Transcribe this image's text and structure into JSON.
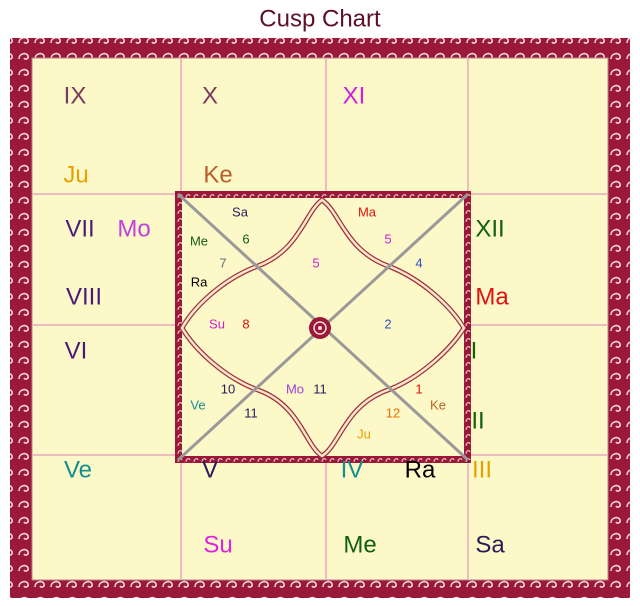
{
  "title": "Cusp Chart",
  "outer_labels": [
    {
      "text": "IX",
      "color": "#7a3a5e"
    },
    {
      "text": "X",
      "color": "#7a3a5e"
    },
    {
      "text": "XI",
      "color": "#d21ee0"
    },
    {
      "text": "Ju",
      "color": "#e8a000"
    },
    {
      "text": "Ke",
      "color": "#b8602a"
    },
    {
      "text": "VII",
      "color": "#4a1a7a"
    },
    {
      "text": "Mo",
      "color": "#c040e0"
    },
    {
      "text": "XII",
      "color": "#106010"
    },
    {
      "text": "VIII",
      "color": "#4a1a7a"
    },
    {
      "text": "Ma",
      "color": "#e01010"
    },
    {
      "text": "VI",
      "color": "#4a1a7a"
    },
    {
      "text": "I",
      "color": "#106010"
    },
    {
      "text": "II",
      "color": "#106010"
    },
    {
      "text": "Ve",
      "color": "#109090"
    },
    {
      "text": "V",
      "color": "#2a1a5a"
    },
    {
      "text": "IV",
      "color": "#109090"
    },
    {
      "text": "Ra",
      "color": "#000000"
    },
    {
      "text": "III",
      "color": "#e8a000"
    },
    {
      "text": "Su",
      "color": "#e020e0"
    },
    {
      "text": "Me",
      "color": "#106010"
    },
    {
      "text": "Sa",
      "color": "#2a1a5a"
    }
  ],
  "inner_labels": [
    {
      "text": "Sa",
      "color": "#2a1a5a"
    },
    {
      "text": "Ma",
      "color": "#e01010"
    },
    {
      "text": "Me",
      "color": "#106010"
    },
    {
      "text": "6",
      "color": "#106010"
    },
    {
      "text": "5",
      "color": "#d020d0"
    },
    {
      "text": "7",
      "color": "#607070"
    },
    {
      "text": "5",
      "color": "#d020d0"
    },
    {
      "text": "4",
      "color": "#3050c0"
    },
    {
      "text": "Ra",
      "color": "#000000"
    },
    {
      "text": "Su",
      "color": "#d020d0"
    },
    {
      "text": "8",
      "color": "#e01010"
    },
    {
      "text": "2",
      "color": "#3050c0"
    },
    {
      "text": "10",
      "color": "#2a1a5a"
    },
    {
      "text": "Mo",
      "color": "#a040d0"
    },
    {
      "text": "11",
      "color": "#2a1a5a"
    },
    {
      "text": "1",
      "color": "#e01010"
    },
    {
      "text": "Ve",
      "color": "#109090"
    },
    {
      "text": "Ke",
      "color": "#b8602a"
    },
    {
      "text": "11",
      "color": "#2a1a5a"
    },
    {
      "text": "12",
      "color": "#e87000"
    },
    {
      "text": "Ju",
      "color": "#e8a000"
    }
  ]
}
